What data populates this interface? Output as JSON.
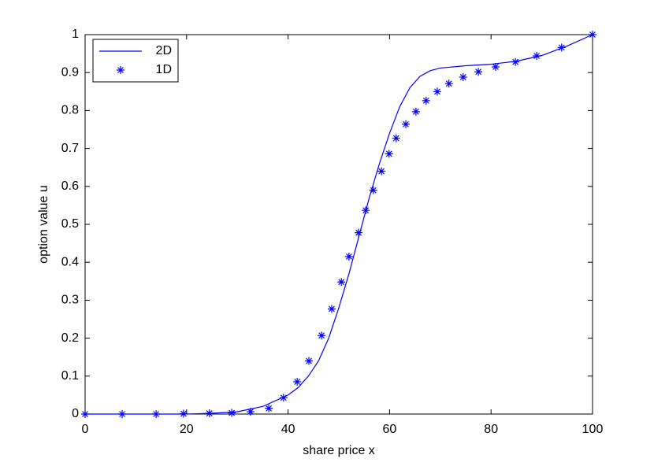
{
  "chart_data": {
    "type": "line",
    "xlabel": "share price x",
    "ylabel": "option value u",
    "xlim": [
      0,
      100
    ],
    "ylim": [
      0,
      1
    ],
    "xticks": [
      0,
      20,
      40,
      60,
      80,
      100
    ],
    "yticks": [
      0,
      0.1,
      0.2,
      0.3,
      0.4,
      0.5,
      0.6,
      0.7,
      0.8,
      0.9,
      1
    ],
    "legend": "upper left",
    "series": [
      {
        "name": "2D",
        "color": "#0000ff",
        "style": "line",
        "x": [
          0,
          20,
          25,
          30,
          35,
          40,
          42,
          44,
          46,
          48,
          50,
          52,
          54,
          56,
          58,
          60,
          62,
          64,
          66,
          68,
          70,
          75,
          80,
          85,
          90,
          95,
          100
        ],
        "values": [
          0,
          0,
          0.002,
          0.006,
          0.02,
          0.05,
          0.07,
          0.1,
          0.14,
          0.2,
          0.28,
          0.37,
          0.47,
          0.57,
          0.66,
          0.74,
          0.81,
          0.86,
          0.89,
          0.905,
          0.912,
          0.918,
          0.922,
          0.93,
          0.945,
          0.97,
          1
        ]
      },
      {
        "name": "1D",
        "color": "#0000ff",
        "style": "star",
        "x": [
          0,
          7.3,
          14.0,
          19.4,
          24.5,
          28.9,
          32.6,
          36.2,
          39.1,
          41.8,
          44.1,
          46.6,
          48.6,
          50.5,
          52.0,
          53.9,
          55.3,
          56.8,
          58.4,
          59.9,
          61.3,
          63.2,
          65.2,
          67.2,
          69.4,
          71.7,
          74.5,
          77.5,
          80.9,
          84.8,
          89.0,
          93.9,
          100
        ],
        "values": [
          0,
          0,
          0,
          0.001,
          0.002,
          0.003,
          0.006,
          0.015,
          0.043,
          0.085,
          0.14,
          0.207,
          0.277,
          0.348,
          0.415,
          0.478,
          0.537,
          0.59,
          0.64,
          0.686,
          0.727,
          0.764,
          0.797,
          0.826,
          0.85,
          0.871,
          0.888,
          0.902,
          0.915,
          0.928,
          0.944,
          0.966,
          1
        ]
      }
    ]
  }
}
